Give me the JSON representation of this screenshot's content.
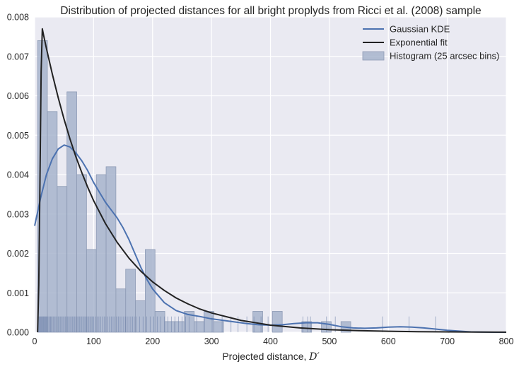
{
  "chart_data": {
    "type": "bar",
    "title": "Distribution of projected distances for all bright proplyds from Ricci et al. (2008) sample",
    "xlabel": "Projected distance, ",
    "xlabel_symbol": "D′",
    "ylabel": "",
    "xlim": [
      0,
      800
    ],
    "ylim": [
      0,
      0.008
    ],
    "x_ticks": [
      "0",
      "100",
      "200",
      "300",
      "400",
      "500",
      "600",
      "700",
      "800"
    ],
    "y_ticks": [
      "0.000",
      "0.001",
      "0.002",
      "0.003",
      "0.004",
      "0.005",
      "0.006",
      "0.007",
      "0.008"
    ],
    "grid": true,
    "legend_position": "top-right",
    "legend": [
      {
        "label": "Gaussian KDE",
        "type": "line",
        "color": "#4c72b0"
      },
      {
        "label": "Exponential fit",
        "type": "line",
        "color": "#222222"
      },
      {
        "label": "Histogram (25 arcsec bins)",
        "type": "patch",
        "color": "#a7b4cc"
      }
    ],
    "histogram": {
      "name": "Histogram (25 arcsec bins)",
      "bin_width": 16.6,
      "bins": [
        {
          "x0": 5,
          "value": 0.0074
        },
        {
          "x0": 21.6,
          "value": 0.0056
        },
        {
          "x0": 38.2,
          "value": 0.0037
        },
        {
          "x0": 54.8,
          "value": 0.0061
        },
        {
          "x0": 71.4,
          "value": 0.004
        },
        {
          "x0": 88.0,
          "value": 0.0021
        },
        {
          "x0": 104.6,
          "value": 0.004
        },
        {
          "x0": 121.2,
          "value": 0.0042
        },
        {
          "x0": 137.8,
          "value": 0.0011
        },
        {
          "x0": 154.4,
          "value": 0.0016
        },
        {
          "x0": 171.0,
          "value": 0.0008
        },
        {
          "x0": 187.6,
          "value": 0.0021
        },
        {
          "x0": 204.2,
          "value": 0.00053
        },
        {
          "x0": 220.8,
          "value": 0.00027
        },
        {
          "x0": 237.4,
          "value": 0.00027
        },
        {
          "x0": 254.0,
          "value": 0.00053
        },
        {
          "x0": 270.6,
          "value": 0.00027
        },
        {
          "x0": 287.2,
          "value": 0.00053
        },
        {
          "x0": 303.8,
          "value": 0.00027
        },
        {
          "x0": 370.2,
          "value": 0.00053
        },
        {
          "x0": 403.4,
          "value": 0.00053
        },
        {
          "x0": 453.2,
          "value": 0.00027
        },
        {
          "x0": 486.4,
          "value": 0.00027
        },
        {
          "x0": 519.6,
          "value": 0.00027
        }
      ]
    },
    "series": [
      {
        "name": "Gaussian KDE",
        "color": "#4c72b0",
        "x": [
          0,
          10,
          20,
          30,
          40,
          50,
          60,
          70,
          80,
          90,
          100,
          110,
          120,
          130,
          140,
          150,
          160,
          170,
          180,
          190,
          200,
          220,
          240,
          260,
          280,
          300,
          320,
          340,
          360,
          380,
          400,
          420,
          440,
          460,
          480,
          500,
          520,
          540,
          560,
          580,
          600,
          620,
          640,
          660,
          680,
          700,
          720,
          740,
          760,
          780,
          800
        ],
        "y": [
          0.0027,
          0.0034,
          0.004,
          0.0044,
          0.00465,
          0.00475,
          0.0047,
          0.00455,
          0.00435,
          0.0041,
          0.0038,
          0.00355,
          0.0033,
          0.0031,
          0.0029,
          0.00265,
          0.00235,
          0.002,
          0.00165,
          0.00135,
          0.0011,
          0.00075,
          0.00055,
          0.00045,
          0.0004,
          0.00034,
          0.0003,
          0.00026,
          0.00022,
          0.00019,
          0.00018,
          0.00019,
          0.00022,
          0.00024,
          0.00024,
          0.0002,
          0.00014,
          0.00011,
          0.0001,
          0.00011,
          0.00013,
          0.00014,
          0.00013,
          0.00011,
          8e-05,
          5e-05,
          3e-05,
          1e-05,
          5e-06,
          0.0,
          0.0
        ]
      },
      {
        "name": "Exponential fit",
        "color": "#222222",
        "x": [
          5,
          7,
          9,
          11,
          13,
          15,
          20,
          30,
          40,
          50,
          60,
          70,
          80,
          90,
          100,
          120,
          140,
          160,
          180,
          200,
          220,
          240,
          260,
          280,
          300,
          350,
          400,
          450,
          500,
          550,
          600,
          650,
          700,
          750,
          800
        ],
        "y": [
          0.0,
          0.0012,
          0.0038,
          0.0066,
          0.0077,
          0.00755,
          0.0072,
          0.00655,
          0.00595,
          0.0054,
          0.0049,
          0.00445,
          0.00405,
          0.00368,
          0.00334,
          0.00276,
          0.00228,
          0.00188,
          0.00155,
          0.00128,
          0.00106,
          0.00087,
          0.00072,
          0.00059,
          0.00049,
          0.0003,
          0.00018,
          0.00011,
          6.5e-05,
          4e-05,
          2.4e-05,
          1.4e-05,
          8e-06,
          5e-06,
          3e-06
        ]
      }
    ],
    "rug": {
      "height_value": 0.0004,
      "x": [
        5,
        6,
        7,
        8,
        9,
        10,
        11,
        12,
        13,
        14,
        15,
        16,
        17,
        18,
        19,
        20,
        21,
        22,
        24,
        25,
        27,
        28,
        30,
        32,
        34,
        36,
        38,
        40,
        42,
        44,
        46,
        48,
        50,
        52,
        54,
        56,
        58,
        60,
        62,
        64,
        66,
        68,
        70,
        72,
        74,
        76,
        78,
        80,
        82,
        84,
        86,
        88,
        90,
        92,
        94,
        96,
        98,
        100,
        103,
        106,
        109,
        112,
        115,
        118,
        121,
        124,
        127,
        130,
        133,
        136,
        139,
        142,
        145,
        148,
        151,
        154,
        157,
        160,
        163,
        166,
        169,
        172,
        178,
        184,
        190,
        196,
        202,
        208,
        214,
        220,
        226,
        232,
        238,
        244,
        250,
        256,
        262,
        275,
        288,
        301,
        318,
        333,
        345,
        360,
        372,
        384,
        396,
        455,
        463,
        468,
        495,
        510,
        590,
        635,
        680
      ]
    }
  }
}
